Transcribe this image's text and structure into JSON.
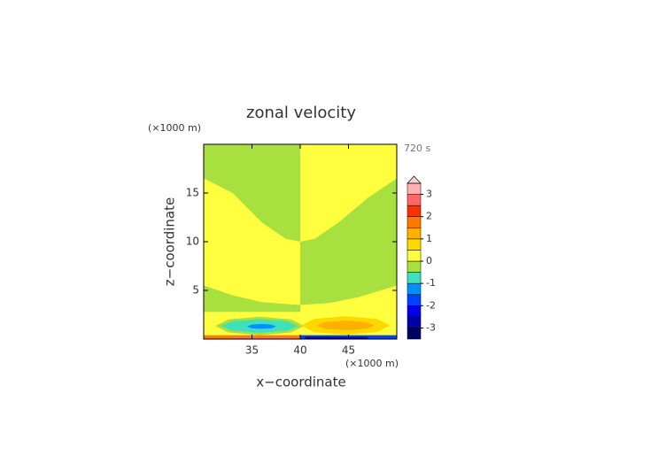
{
  "chart_data": {
    "type": "contour",
    "title": "zonal velocity",
    "xlabel": "x−coordinate",
    "ylabel": "z−coordinate",
    "x_unit": "(×1000 m)",
    "y_unit": "(×1000 m)",
    "time_label": "720 s",
    "xlim": [
      30,
      50
    ],
    "xticks": [
      35,
      40,
      45
    ],
    "ylim": [
      0,
      20
    ],
    "yticks": [
      5,
      10,
      15
    ],
    "levels": [
      -3.5,
      -3,
      -2.5,
      -2,
      -1.5,
      -1,
      -0.5,
      0,
      0.5,
      1,
      1.5,
      2,
      2.5,
      3,
      3.5
    ],
    "colors": [
      "#000060",
      "#0000a8",
      "#0000e8",
      "#0040ff",
      "#0090ff",
      "#40e0b8",
      "#a8e040",
      "#ffff40",
      "#ffd800",
      "#ffb000",
      "#ff7800",
      "#ff3000",
      "#ff6868",
      "#ffb0b0"
    ],
    "extend_color": "#ffd0d0",
    "colorbar_ticks": [
      -3,
      -2,
      -1,
      0,
      1,
      2,
      3
    ],
    "regions": [
      {
        "level": 0,
        "x": [
          30,
          50,
          50,
          30
        ],
        "z": [
          0,
          0,
          20,
          20
        ]
      },
      {
        "level": -0.5,
        "x": [
          30,
          40,
          40,
          38.5,
          36,
          33,
          30
        ],
        "z": [
          20,
          20,
          10,
          10.3,
          12,
          15,
          16.5
        ]
      },
      {
        "level": -0.5,
        "x": [
          40,
          41.5,
          44,
          47,
          50,
          50,
          46,
          43,
          40
        ],
        "z": [
          10,
          10.3,
          12,
          14.5,
          16.5,
          5.5,
          4.3,
          3.7,
          3.5
        ]
      },
      {
        "level": -0.5,
        "x": [
          30,
          33,
          36,
          40,
          40,
          30
        ],
        "z": [
          5.5,
          4.5,
          3.8,
          3.5,
          2.8,
          2.8
        ]
      },
      {
        "level": -0.5,
        "x": [
          40.4,
          39.05,
          35.8,
          32.55,
          31.2,
          32.55,
          35.8,
          39.05
        ],
        "z": [
          1.35,
          2.02,
          2.3,
          2.02,
          1.35,
          0.68,
          0.4,
          0.68
        ]
      },
      {
        "level": -1,
        "x": [
          39.8,
          38.6,
          35.8,
          33,
          31.8,
          33,
          35.8,
          38.6
        ],
        "z": [
          1.35,
          1.85,
          2.05,
          1.85,
          1.35,
          0.85,
          0.65,
          0.85
        ]
      },
      {
        "level": -1.5,
        "x": [
          37.5,
          37.06,
          36,
          34.94,
          34.5,
          34.94,
          36,
          37.06
        ],
        "z": [
          1.3,
          1.48,
          1.55,
          1.48,
          1.3,
          1.12,
          1.05,
          1.12
        ]
      },
      {
        "level": 0.5,
        "x": [
          49.3,
          47.95,
          44.7,
          41.45,
          40.1,
          41.45,
          44.7,
          47.95
        ],
        "z": [
          1.4,
          2.07,
          2.35,
          2.07,
          1.4,
          0.73,
          0.45,
          0.73
        ]
      },
      {
        "level": 1,
        "x": [
          47.7,
          46.82,
          44.7,
          42.58,
          41.7,
          42.58,
          44.7,
          46.82
        ],
        "z": [
          1.4,
          1.75,
          1.9,
          1.75,
          1.4,
          1.05,
          0.9,
          1.05
        ]
      },
      {
        "level": 1.5,
        "x": [
          30,
          40,
          40,
          30
        ],
        "z": [
          0,
          0,
          0.4,
          0.4
        ]
      },
      {
        "level": 2.5,
        "x": [
          33,
          39.5,
          39.5,
          33
        ],
        "z": [
          0,
          0,
          0.22,
          0.22
        ]
      },
      {
        "level": -2,
        "x": [
          40,
          50,
          50,
          40
        ],
        "z": [
          0,
          0,
          0.4,
          0.4
        ]
      },
      {
        "level": -3,
        "x": [
          40.5,
          47,
          47,
          40.5
        ],
        "z": [
          0,
          0,
          0.22,
          0.22
        ]
      }
    ]
  }
}
